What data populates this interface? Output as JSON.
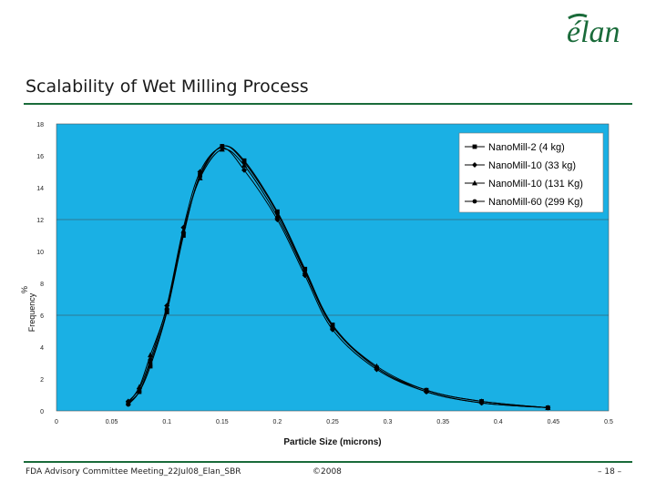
{
  "slide": {
    "title": "Scalability of Wet Milling Process",
    "logo_text": "élan",
    "footer_left": "FDA Advisory Committee Meeting_22Jul08_Elan_SBR",
    "footer_mid": "©2008",
    "footer_right": "– 18 –"
  },
  "colors": {
    "plot_bg": "#1ab0e4",
    "rule": "#1a6b3a",
    "series_line": "#000000",
    "logo_green": "#1a6b3a"
  },
  "chart_data": {
    "type": "line",
    "xlabel": "Particle Size (microns)",
    "ylabel": "% Frequency",
    "xlim": [
      0,
      0.5
    ],
    "ylim": [
      0,
      18
    ],
    "x_ticks": [
      "0",
      "0.05",
      "0.1",
      "0.15",
      "0.2",
      "0.25",
      "0.3",
      "0.35",
      "0.4",
      "0.45",
      "0.5"
    ],
    "y_ticks": [
      "0",
      "2",
      "4",
      "6",
      "8",
      "10",
      "12",
      "14",
      "16",
      "18"
    ],
    "grid_y": [
      6,
      12,
      18
    ],
    "legend_position": "top-right",
    "series": [
      {
        "name": "NanoMill-2 (4 kg)",
        "marker": "square",
        "x": [
          0.065,
          0.075,
          0.085,
          0.1,
          0.115,
          0.13,
          0.15,
          0.17,
          0.2,
          0.225,
          0.25,
          0.29,
          0.335,
          0.385,
          0.445
        ],
        "y": [
          0.5,
          1.2,
          2.8,
          6.2,
          11.0,
          14.8,
          16.6,
          15.7,
          12.5,
          8.9,
          5.4,
          2.7,
          1.3,
          0.6,
          0.2
        ]
      },
      {
        "name": "NanoMill-10 (33 kg)",
        "marker": "diamond",
        "x": [
          0.065,
          0.075,
          0.085,
          0.1,
          0.115,
          0.13,
          0.15,
          0.17,
          0.2,
          0.225,
          0.25,
          0.29,
          0.335,
          0.385,
          0.445
        ],
        "y": [
          0.6,
          1.4,
          3.2,
          6.6,
          11.5,
          15.0,
          16.5,
          15.1,
          12.0,
          8.5,
          5.1,
          2.6,
          1.2,
          0.5,
          0.2
        ]
      },
      {
        "name": "NanoMill-10 (131 Kg)",
        "marker": "triangle",
        "x": [
          0.065,
          0.075,
          0.085,
          0.1,
          0.115,
          0.13,
          0.15,
          0.17,
          0.2,
          0.225,
          0.25,
          0.29,
          0.335,
          0.385,
          0.445
        ],
        "y": [
          0.5,
          1.5,
          3.5,
          6.5,
          11.3,
          14.6,
          16.4,
          15.4,
          12.2,
          8.7,
          5.3,
          2.8,
          1.3,
          0.6,
          0.2
        ]
      },
      {
        "name": "NanoMill-60 (299 Kg)",
        "marker": "circle",
        "x": [
          0.065,
          0.075,
          0.085,
          0.1,
          0.115,
          0.13,
          0.15,
          0.17,
          0.2,
          0.225,
          0.25,
          0.29,
          0.335,
          0.385,
          0.445
        ],
        "y": [
          0.4,
          1.2,
          3.0,
          6.3,
          11.1,
          14.7,
          16.6,
          15.6,
          12.4,
          8.8,
          5.3,
          2.7,
          1.2,
          0.5,
          0.2
        ]
      }
    ]
  }
}
